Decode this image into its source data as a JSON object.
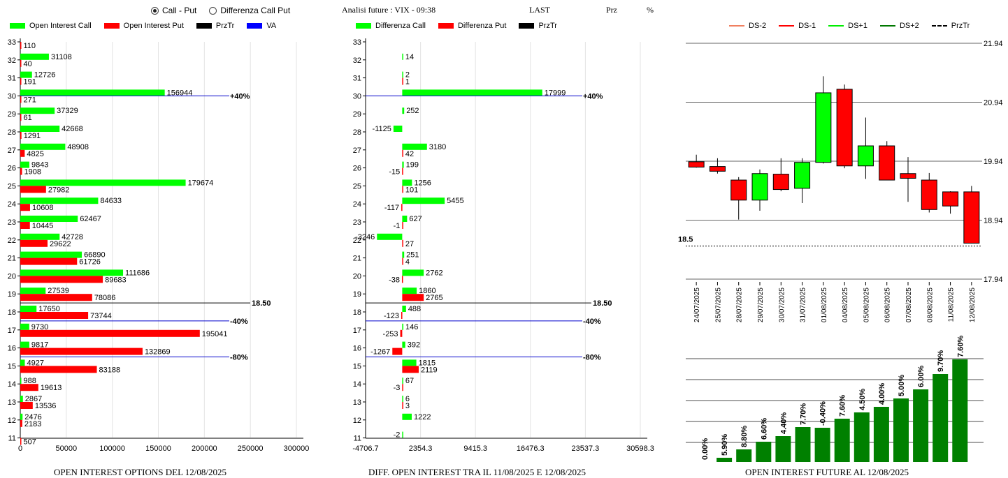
{
  "header": {
    "radio_call_put": "Call - Put",
    "radio_diff": "Differenza Call Put",
    "title": "Analisi future : VIX - 09:38",
    "last_label": "LAST",
    "prz_label": "Prz",
    "pct_label": "%"
  },
  "colors": {
    "call": "#00ff00",
    "put": "#ff0000",
    "dark_green": "#008000",
    "marker_blue": "#0000cc",
    "va": "#0000ff",
    "ds_minus2": "#f08060",
    "ds_minus1": "#ff0000",
    "ds_plus1": "#00ee00",
    "ds_plus2": "#007700"
  },
  "chart_data": [
    {
      "type": "bar",
      "orientation": "horizontal",
      "legend": [
        "Open Interest Call",
        "Open Interest Put",
        "PrzTr",
        "VA"
      ],
      "title": "OPEN INTEREST OPTIONS DEL 12/08/2025",
      "categories": [
        33,
        32,
        31,
        30,
        29,
        28,
        27,
        26,
        25,
        24,
        23,
        22,
        21,
        20,
        19,
        18,
        17,
        16,
        15,
        14,
        13,
        12,
        11
      ],
      "series": [
        {
          "name": "Open Interest Call",
          "values": [
            null,
            31108,
            12726,
            156944,
            37329,
            42668,
            48908,
            9843,
            179674,
            84633,
            62467,
            42728,
            66890,
            111686,
            27539,
            17650,
            9730,
            9817,
            4927,
            988,
            2867,
            2476,
            null
          ]
        },
        {
          "name": "Open Interest Put",
          "values": [
            110,
            40,
            191,
            271,
            61,
            1291,
            4825,
            1908,
            27982,
            10608,
            10445,
            29622,
            61726,
            89683,
            78086,
            73744,
            195041,
            132869,
            83188,
            19613,
            13536,
            2183,
            507
          ]
        }
      ],
      "x_ticks": [
        "0",
        "50000",
        "100000",
        "150000",
        "200000",
        "250000",
        "300000"
      ],
      "xlim": [
        0,
        300000
      ],
      "markers": [
        {
          "strike": 30,
          "label": "+40%",
          "kind": "pct"
        },
        {
          "strike": 18.5,
          "label": "18.50",
          "kind": "price"
        },
        {
          "strike": 17.5,
          "label": "-40%",
          "kind": "pct"
        },
        {
          "strike": 15.5,
          "label": "-80%",
          "kind": "pct"
        }
      ]
    },
    {
      "type": "bar",
      "orientation": "horizontal",
      "legend": [
        "Differenza Call",
        "Differenza Put",
        "PrzTr"
      ],
      "title": "DIFF. OPEN INTEREST TRA IL 11/08/2025 E 12/08/2025",
      "categories": [
        33,
        32,
        31,
        30,
        29,
        28,
        27,
        26,
        25,
        24,
        23,
        22,
        21,
        20,
        19,
        18,
        17,
        16,
        15,
        14,
        13,
        12,
        11
      ],
      "series": [
        {
          "name": "Differenza Call",
          "values": [
            null,
            14,
            2,
            17999,
            252,
            -1125,
            3180,
            199,
            1256,
            5455,
            627,
            -3246,
            251,
            2762,
            1860,
            488,
            146,
            392,
            1815,
            67,
            6,
            1222,
            -2
          ]
        },
        {
          "name": "Differenza Put",
          "values": [
            null,
            null,
            1,
            null,
            null,
            null,
            42,
            -15,
            101,
            -117,
            -1,
            27,
            4,
            -38,
            2765,
            -123,
            -253,
            -1267,
            2119,
            -3,
            3,
            null,
            null
          ]
        }
      ],
      "x_ticks": [
        "-4706.7",
        "2354.3",
        "9415.3",
        "16476.3",
        "23537.3",
        "30598.3"
      ],
      "xlim": [
        -4706.7,
        30598.3
      ],
      "markers": [
        {
          "strike": 30,
          "label": "+40%",
          "kind": "pct"
        },
        {
          "strike": 18.5,
          "label": "18.50",
          "kind": "price"
        },
        {
          "strike": 17.5,
          "label": "-40%",
          "kind": "pct"
        },
        {
          "strike": 15.5,
          "label": "-80%",
          "kind": "pct"
        }
      ]
    },
    {
      "type": "candlestick",
      "legend": [
        "DS-2",
        "DS-1",
        "DS+1",
        "DS+2",
        "PrzTr"
      ],
      "dates": [
        "24/07/2025",
        "25/07/2025",
        "28/07/2025",
        "29/07/2025",
        "30/07/2025",
        "31/07/2025",
        "01/08/2025",
        "04/08/2025",
        "05/08/2025",
        "06/08/2025",
        "07/08/2025",
        "08/08/2025",
        "11/08/2025",
        "12/08/2025"
      ],
      "ohlc": [
        {
          "o": 19.93,
          "h": 20.05,
          "l": 19.83,
          "c": 19.84
        },
        {
          "o": 19.85,
          "h": 19.99,
          "l": 19.73,
          "c": 19.77
        },
        {
          "o": 19.62,
          "h": 19.67,
          "l": 18.95,
          "c": 19.28
        },
        {
          "o": 19.28,
          "h": 19.8,
          "l": 19.1,
          "c": 19.73
        },
        {
          "o": 19.72,
          "h": 19.99,
          "l": 19.43,
          "c": 19.46
        },
        {
          "o": 19.48,
          "h": 19.99,
          "l": 19.23,
          "c": 19.92
        },
        {
          "o": 19.92,
          "h": 21.38,
          "l": 19.9,
          "c": 21.1
        },
        {
          "o": 21.16,
          "h": 21.24,
          "l": 19.82,
          "c": 19.86
        },
        {
          "o": 19.86,
          "h": 20.68,
          "l": 19.64,
          "c": 20.2
        },
        {
          "o": 20.2,
          "h": 20.28,
          "l": 19.63,
          "c": 19.62
        },
        {
          "o": 19.73,
          "h": 20.01,
          "l": 19.25,
          "c": 19.65
        },
        {
          "o": 19.62,
          "h": 19.74,
          "l": 19.07,
          "c": 19.12
        },
        {
          "o": 19.42,
          "h": 19.43,
          "l": 19.05,
          "c": 19.18
        },
        {
          "o": 19.42,
          "h": 19.52,
          "l": 18.55,
          "c": 18.55
        }
      ],
      "y_ticks": [
        "21.94",
        "20.94",
        "19.94",
        "18.94",
        "17.94"
      ],
      "ylim": [
        17.94,
        21.94
      ],
      "reference_line": {
        "value": 18.5,
        "label": "18.5"
      }
    },
    {
      "type": "bar",
      "title": "OPEN INTEREST FUTURE AL 12/08/2025",
      "categories": [
        "24/07/2025",
        "25/07/2025",
        "28/07/2025",
        "29/07/2025",
        "30/07/2025",
        "31/07/2025",
        "01/08/2025",
        "04/08/2025",
        "05/08/2025",
        "06/08/2025",
        "07/08/2025",
        "08/08/2025",
        "11/08/2025",
        "12/08/2025"
      ],
      "values": [
        0.0,
        5.9,
        8.8,
        6.6,
        4.4,
        7.7,
        -0.4,
        7.6,
        4.5,
        4.0,
        5.0,
        6.0,
        9.7,
        7.6
      ],
      "data_labels": [
        "0.00%",
        "5.90%",
        "8.80%",
        "6.60%",
        "4.40%",
        "7.70%",
        "-0.40%",
        "7.60%",
        "4.50%",
        "4.00%",
        "5.00%",
        "6.00%",
        "9.70%",
        "7.60%"
      ],
      "bar_heights_relative": [
        0,
        6,
        18,
        29,
        37,
        50,
        49,
        62,
        71,
        79,
        91,
        104,
        126,
        147
      ]
    }
  ]
}
